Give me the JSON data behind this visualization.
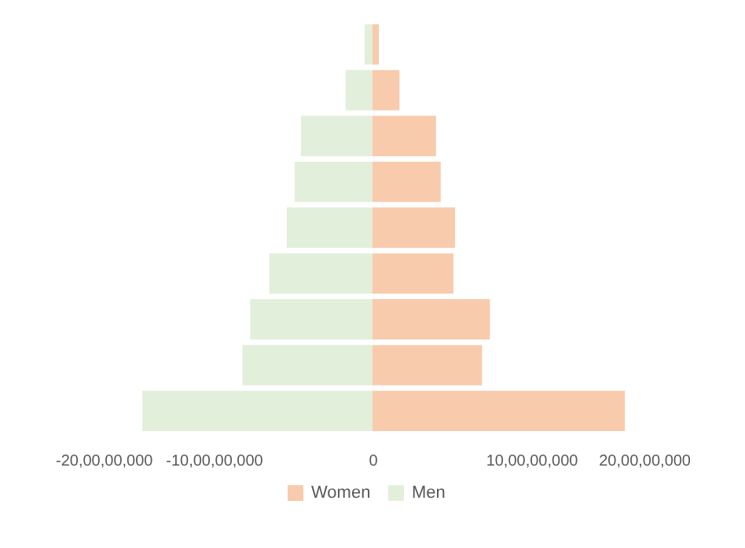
{
  "chart_data": {
    "type": "bar",
    "orientation": "horizontal",
    "stacked": true,
    "categories": [
      null,
      null,
      null,
      null,
      null,
      null,
      null,
      null,
      null
    ],
    "series": [
      {
        "name": "Women",
        "color": "#f8cbad",
        "values": [
          4000000,
          17000000,
          40000000,
          43000000,
          52000000,
          51000000,
          74000000,
          69000000,
          159000000
        ]
      },
      {
        "name": "Men",
        "color": "#e2efda",
        "values": [
          -5000000,
          -17000000,
          -45000000,
          -49000000,
          -54000000,
          -65000000,
          -77000000,
          -82000000,
          -145000000
        ]
      }
    ],
    "xlim": [
      -200000000,
      200000000
    ],
    "xticks": [
      {
        "value": -200000000,
        "label": "-20,00,00,000"
      },
      {
        "value": -100000000,
        "label": "-10,00,00,000"
      },
      0,
      {
        "value": 100000000,
        "label": "10,00,00,000"
      },
      {
        "value": 200000000,
        "label": "20,00,00,000"
      }
    ],
    "tick_labels": "x",
    "legend": "bottom"
  }
}
